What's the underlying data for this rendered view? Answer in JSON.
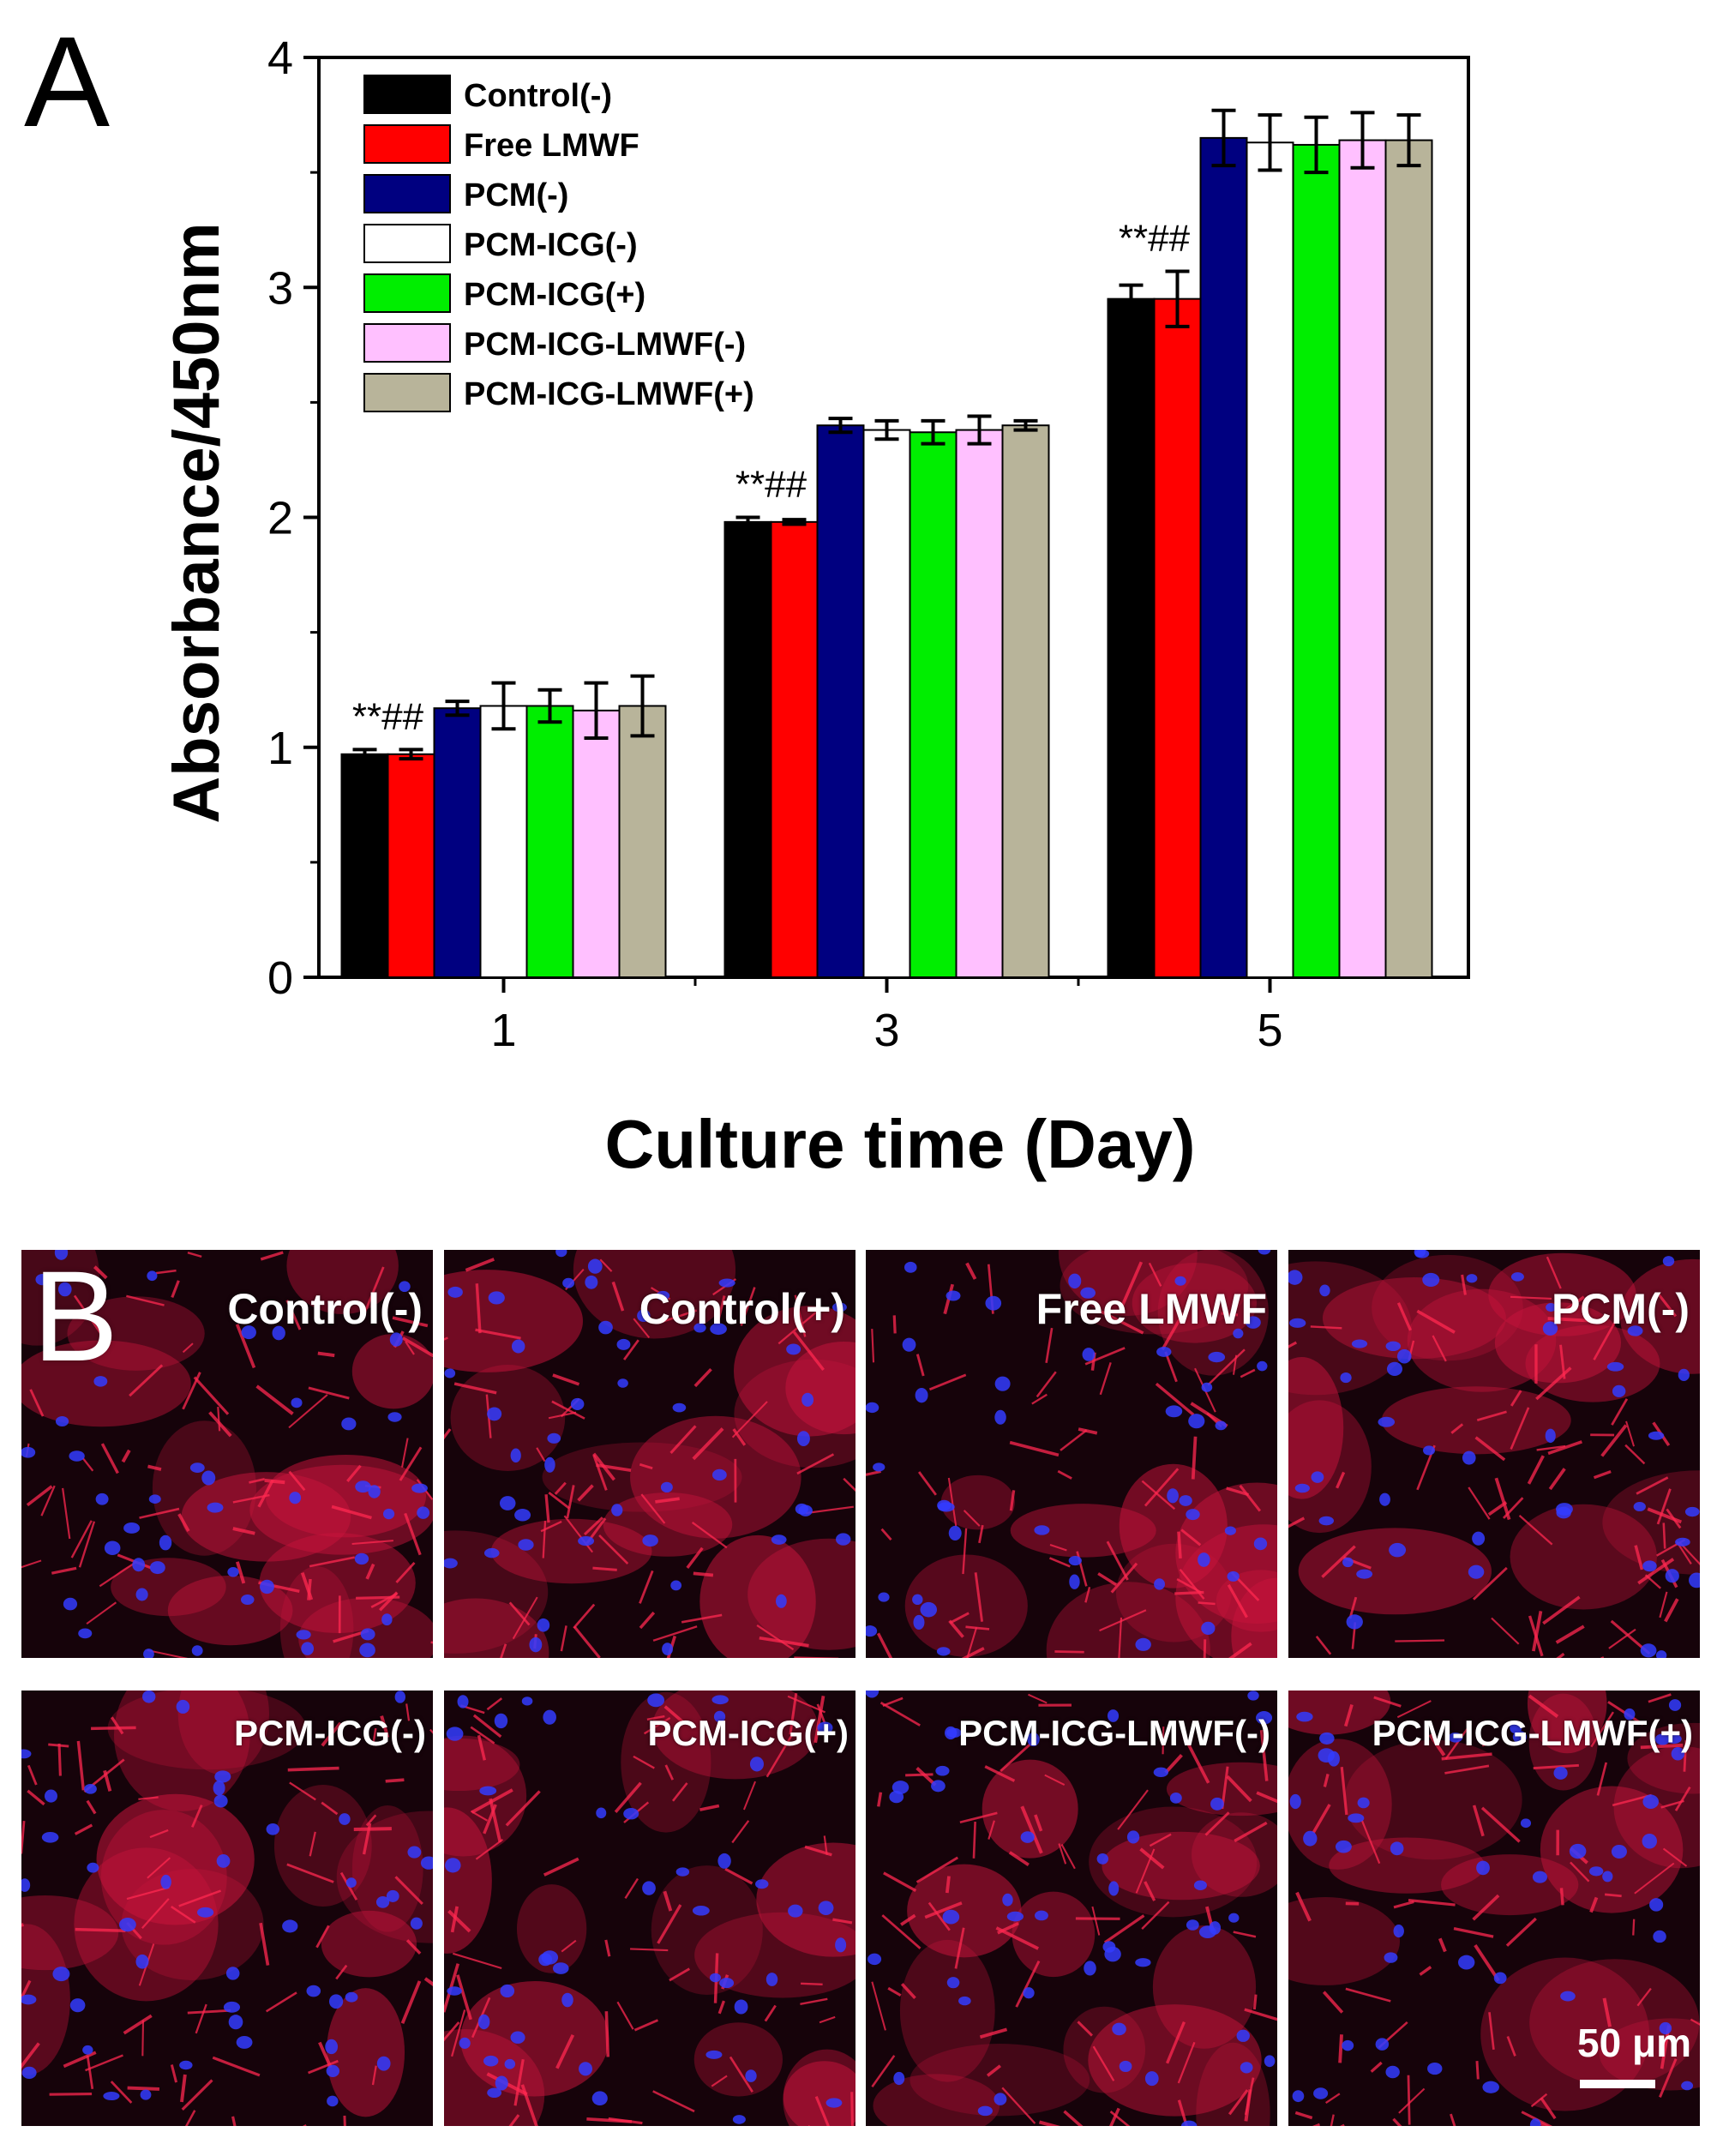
{
  "panel_a": {
    "letter": "A"
  },
  "panel_b": {
    "letter": "B"
  },
  "chart_data": {
    "type": "bar",
    "title": "",
    "xlabel": "Culture time (Day)",
    "ylabel": "Absorbance/450nm",
    "ylim": [
      0,
      4
    ],
    "yticks": [
      "0",
      "1",
      "2",
      "3",
      "4"
    ],
    "categories": [
      "1",
      "3",
      "5"
    ],
    "legend_position": "top-left",
    "series": [
      {
        "name": "Control(-)",
        "color": "#000000",
        "values": [
          0.97,
          1.98,
          2.95
        ],
        "errors": [
          0.02,
          0.02,
          0.06
        ]
      },
      {
        "name": "Free LMWF",
        "color": "#ff0000",
        "values": [
          0.97,
          1.98,
          2.95
        ],
        "errors": [
          0.02,
          0.01,
          0.12
        ]
      },
      {
        "name": "PCM(-)",
        "color": "#000080",
        "values": [
          1.17,
          2.4,
          3.65
        ],
        "errors": [
          0.03,
          0.03,
          0.12
        ]
      },
      {
        "name": "PCM-ICG(-)",
        "color": "#ffffff",
        "values": [
          1.18,
          2.38,
          3.63
        ],
        "errors": [
          0.1,
          0.04,
          0.12
        ]
      },
      {
        "name": "PCM-ICG(+)",
        "color": "#00ee00",
        "values": [
          1.18,
          2.37,
          3.62
        ],
        "errors": [
          0.07,
          0.05,
          0.12
        ]
      },
      {
        "name": "PCM-ICG-LMWF(-)",
        "color": "#ffc0ff",
        "values": [
          1.16,
          2.38,
          3.64
        ],
        "errors": [
          0.12,
          0.06,
          0.12
        ]
      },
      {
        "name": "PCM-ICG-LMWF(+)",
        "color": "#b8b49a",
        "values": [
          1.18,
          2.4,
          3.64
        ],
        "errors": [
          0.13,
          0.02,
          0.11
        ]
      }
    ],
    "annotations": [
      {
        "category": "1",
        "text": "**##"
      },
      {
        "category": "3",
        "text": "**##"
      },
      {
        "category": "5",
        "text": "**##"
      }
    ]
  },
  "micrographs": [
    {
      "label": "Control(-)",
      "seed": 11
    },
    {
      "label": "Control(+)",
      "seed": 23
    },
    {
      "label": "Free LMWF",
      "seed": 37
    },
    {
      "label": "PCM(-)",
      "seed": 41
    },
    {
      "label": "PCM-ICG(-)",
      "seed": 53
    },
    {
      "label": "PCM-ICG(+)",
      "seed": 67
    },
    {
      "label": "PCM-ICG-LMWF(-)",
      "seed": 79
    },
    {
      "label": "PCM-ICG-LMWF(+)",
      "seed": 83
    }
  ],
  "scale_bar": {
    "label": "50 μm"
  }
}
